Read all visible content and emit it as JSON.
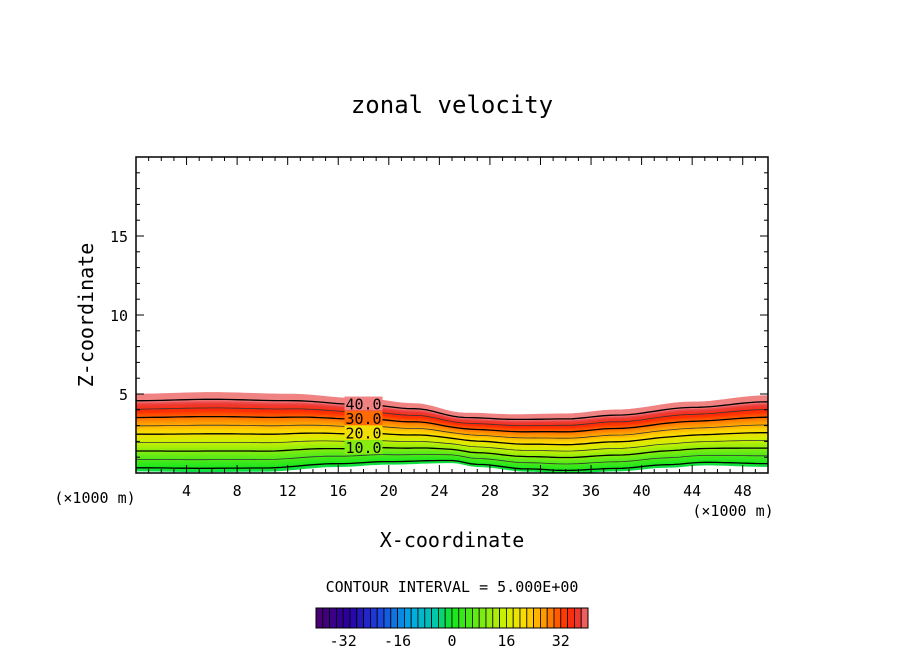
{
  "chart_data": {
    "type": "contour",
    "title": "zonal velocity",
    "xlabel": "X-coordinate",
    "ylabel": "Z-coordinate",
    "x_unit": "(×1000 m)",
    "z_unit": "(×1000 m)",
    "xlim": [
      0,
      50
    ],
    "ylim": [
      0,
      20
    ],
    "x_ticks": [
      4,
      8,
      12,
      16,
      20,
      24,
      28,
      32,
      36,
      40,
      44,
      48
    ],
    "y_ticks": [
      5,
      10,
      15
    ],
    "contour_interval_label": "CONTOUR INTERVAL = 5.000E+00",
    "contour_interval": 5,
    "contour_labels": [
      "40.0",
      "30.0",
      "20.0",
      "10.0"
    ],
    "contour_label_values": [
      40,
      30,
      20,
      10
    ],
    "terrain_z": [
      [
        0,
        0.12
      ],
      [
        5,
        0.08
      ],
      [
        10,
        0.1
      ],
      [
        16,
        0.4
      ],
      [
        20,
        0.55
      ],
      [
        25,
        0.65
      ],
      [
        27,
        0.4
      ],
      [
        31,
        0.1
      ],
      [
        34,
        0.0
      ],
      [
        38,
        0.12
      ],
      [
        42,
        0.35
      ],
      [
        45,
        0.5
      ],
      [
        50,
        0.4
      ]
    ],
    "top_z": [
      [
        0,
        5.0
      ],
      [
        6,
        5.1
      ],
      [
        12,
        5.0
      ],
      [
        18,
        4.7
      ],
      [
        22,
        4.4
      ],
      [
        26,
        3.8
      ],
      [
        30,
        3.7
      ],
      [
        34,
        3.75
      ],
      [
        38,
        4.0
      ],
      [
        44,
        4.5
      ],
      [
        50,
        4.9
      ]
    ],
    "colorbar": {
      "min": -40,
      "max": 40,
      "tick_labels": [
        "-32",
        "-16",
        "0",
        "16",
        "32"
      ],
      "tick_values": [
        -32,
        -16,
        0,
        16,
        32
      ]
    }
  }
}
